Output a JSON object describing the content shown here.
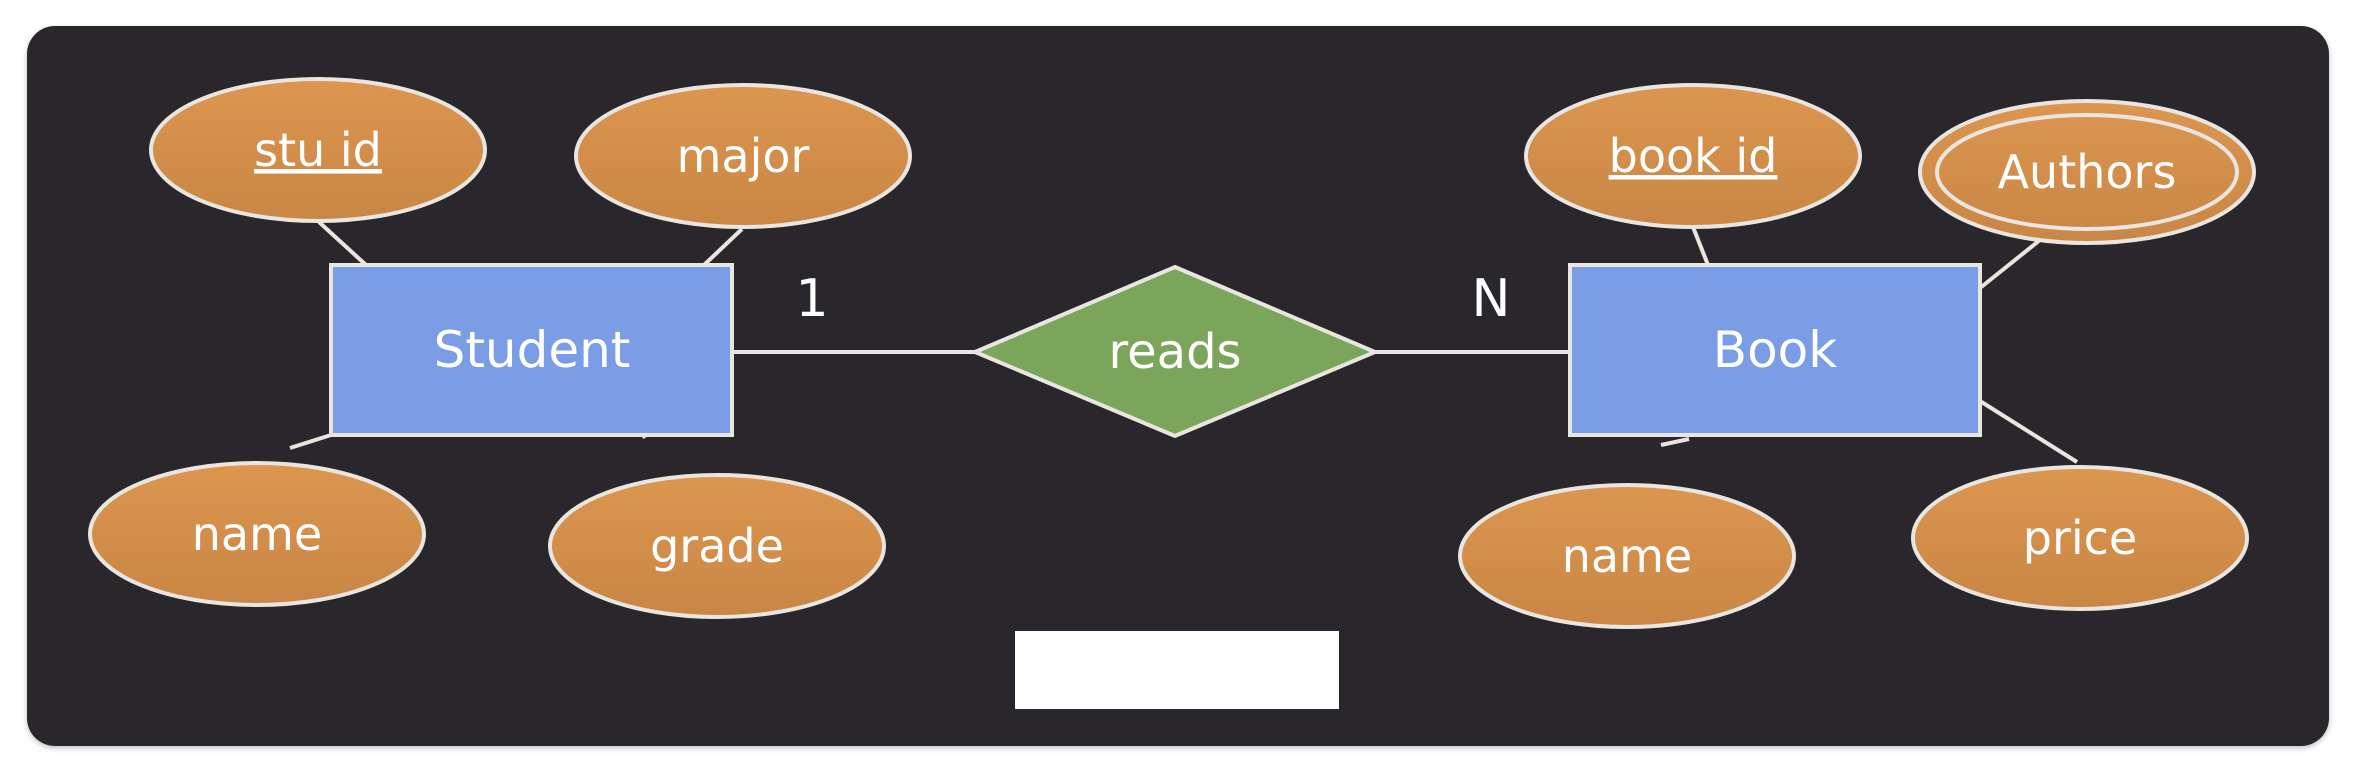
{
  "diagram": {
    "entities": {
      "student": "Student",
      "book": "Book"
    },
    "relationship": {
      "label": "reads",
      "cardinality_left": "1",
      "cardinality_right": "N"
    },
    "student_attributes": {
      "stu_id": "stu id",
      "major": "major",
      "name": "name",
      "grade": "grade"
    },
    "book_attributes": {
      "book_id": "book id",
      "authors": "Authors",
      "name": "name",
      "price": "price"
    },
    "key_attributes": [
      "stu id",
      "book id"
    ],
    "multivalued_attributes": [
      "Authors"
    ],
    "colors": {
      "background": "#29272b",
      "entity_fill": "#7b9de6",
      "relationship_fill": "#7aa55a",
      "attribute_fill": "#d18f4a",
      "stroke": "#e9e5e0",
      "text": "#ffffff"
    }
  }
}
